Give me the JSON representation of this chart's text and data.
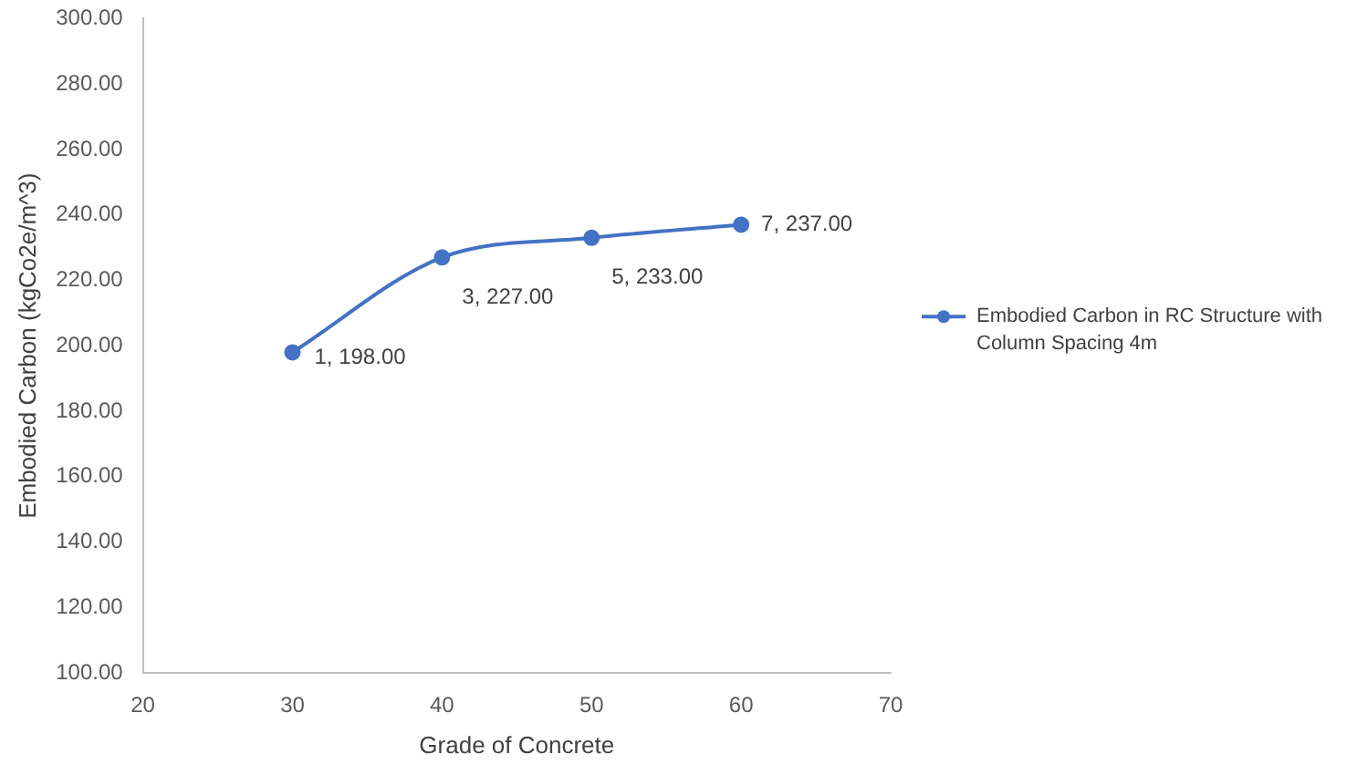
{
  "chart_data": {
    "type": "line",
    "xlabel": "Grade of Concrete",
    "ylabel": "Embodied Carbon (kgCo2e/m^3)",
    "x": [
      30,
      40,
      50,
      60
    ],
    "series": [
      {
        "name": "Embodied Carbon in RC Structure with Column Spacing 4m",
        "color": "#4472c4",
        "values": [
          198,
          227,
          233,
          237
        ]
      }
    ],
    "xlim": [
      20,
      70
    ],
    "xticks": [
      20,
      30,
      40,
      50,
      60,
      70
    ],
    "ylim": [
      100,
      300
    ],
    "yticks": [
      {
        "value": 100,
        "label": "100.00"
      },
      {
        "value": 120,
        "label": "120.00"
      },
      {
        "value": 140,
        "label": "140.00"
      },
      {
        "value": 160,
        "label": "160.00"
      },
      {
        "value": 180,
        "label": "180.00"
      },
      {
        "value": 200,
        "label": "200.00"
      },
      {
        "value": 220,
        "label": "220.00"
      },
      {
        "value": 240,
        "label": "240.00"
      },
      {
        "value": 260,
        "label": "260.00"
      },
      {
        "value": 280,
        "label": "280.00"
      },
      {
        "value": 300,
        "label": "300.00"
      }
    ],
    "annotations": [
      {
        "text": "1, 198.00",
        "x": 30,
        "y": 198
      },
      {
        "text": "3, 227.00",
        "x": 40,
        "y": 227
      },
      {
        "text": "5, 233.00",
        "x": 50,
        "y": 233
      },
      {
        "text": "7, 237.00",
        "x": 60,
        "y": 237
      }
    ],
    "legend": "right",
    "marker": "circle",
    "line_style": "solid",
    "grid": false
  }
}
